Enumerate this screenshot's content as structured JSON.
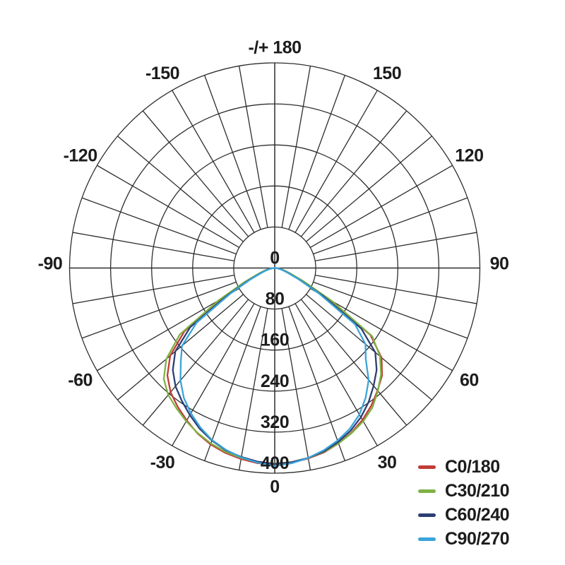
{
  "chart_data": {
    "type": "line",
    "subtype": "polar-photometric-distribution",
    "title": "",
    "angle_unit": "degrees",
    "top_axis_label": "-/+ 180",
    "angle_labels": [
      {
        "angle": 180,
        "label": "-/+ 180"
      },
      {
        "angle": -150,
        "label": "-150"
      },
      {
        "angle": 150,
        "label": "150"
      },
      {
        "angle": -120,
        "label": "-120"
      },
      {
        "angle": 120,
        "label": "120"
      },
      {
        "angle": -90,
        "label": "-90"
      },
      {
        "angle": 90,
        "label": "90"
      },
      {
        "angle": -60,
        "label": "-60"
      },
      {
        "angle": 60,
        "label": "60"
      },
      {
        "angle": -30,
        "label": "-30"
      },
      {
        "angle": 30,
        "label": "30"
      },
      {
        "angle": 0,
        "label": "0"
      }
    ],
    "radial_axis": {
      "min": 0,
      "max": 400,
      "tick_step": 80,
      "ticks": [
        0,
        80,
        160,
        240,
        320,
        400
      ],
      "tick_labels": [
        "0",
        "80",
        "160",
        "240",
        "320",
        "400"
      ]
    },
    "grid": {
      "rings": [
        80,
        160,
        240,
        320,
        400
      ],
      "spoke_step_deg": 10,
      "grid_on": true,
      "color": "#2d2d2d"
    },
    "legend_position": "bottom-right",
    "angles": [
      -90,
      -85,
      -80,
      -75,
      -70,
      -65,
      -60,
      -55,
      -50,
      -45,
      -40,
      -35,
      -30,
      -25,
      -20,
      -15,
      -10,
      -5,
      0,
      5,
      10,
      15,
      20,
      25,
      30,
      35,
      40,
      45,
      50,
      55,
      60,
      65,
      70,
      75,
      80,
      85,
      90
    ],
    "series": [
      {
        "name": "C0/180",
        "color": "#c13c38",
        "values": [
          0,
          5,
          12,
          20,
          32,
          60,
          118,
          215,
          266,
          296,
          316,
          330,
          343,
          356,
          366,
          373,
          378,
          382,
          383,
          381,
          377,
          372,
          364,
          354,
          342,
          328,
          312,
          296,
          272,
          228,
          122,
          60,
          33,
          20,
          12,
          5,
          0
        ]
      },
      {
        "name": "C30/210",
        "color": "#7fb244",
        "values": [
          0,
          5,
          13,
          22,
          35,
          66,
          127,
          226,
          276,
          306,
          323,
          334,
          345,
          355,
          364,
          371,
          376,
          380,
          381,
          380,
          376,
          371,
          364,
          355,
          345,
          332,
          313,
          293,
          268,
          232,
          129,
          63,
          34,
          21,
          12,
          5,
          0
        ]
      },
      {
        "name": "C60/240",
        "color": "#2c3f74",
        "values": [
          0,
          4,
          11,
          18,
          30,
          55,
          106,
          201,
          253,
          281,
          301,
          316,
          331,
          346,
          358,
          368,
          374,
          379,
          382,
          380,
          376,
          370,
          361,
          350,
          336,
          319,
          300,
          281,
          256,
          206,
          109,
          52,
          28,
          17,
          10,
          4,
          0
        ]
      },
      {
        "name": "C90/270",
        "color": "#3aa4da",
        "values": [
          0,
          4,
          10,
          17,
          28,
          52,
          100,
          186,
          236,
          259,
          286,
          309,
          327,
          343,
          357,
          367,
          375,
          381,
          386,
          382,
          376,
          368,
          358,
          346,
          330,
          309,
          285,
          251,
          231,
          191,
          101,
          50,
          27,
          16,
          9,
          4,
          0
        ]
      }
    ]
  },
  "legend": {
    "items": [
      {
        "label": "C0/180",
        "color": "#c13c38"
      },
      {
        "label": "C30/210",
        "color": "#7fb244"
      },
      {
        "label": "C60/240",
        "color": "#2c3f74"
      },
      {
        "label": "C90/270",
        "color": "#3aa4da"
      }
    ]
  },
  "style_tokens": {
    "text_color": "#1c1c1c",
    "grid_color": "#2d2d2d",
    "background": "#ffffff"
  }
}
